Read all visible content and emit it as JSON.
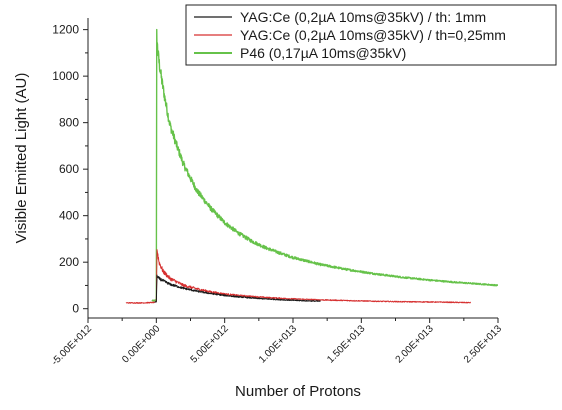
{
  "chart_data": {
    "type": "line",
    "title": "",
    "xlabel": "Number of Protons",
    "ylabel": "Visible Emitted Light (AU)",
    "xlim": [
      -5000000000000.0,
      25000000000000.0
    ],
    "ylim": [
      -40,
      1250
    ],
    "x_ticks": [
      -5000000000000.0,
      0,
      5000000000000.0,
      10000000000000.0,
      15000000000000.0,
      20000000000000.0,
      25000000000000.0
    ],
    "x_tick_labels": [
      "-5.00E+012",
      "0.00E+000",
      "5.00E+012",
      "1.00E+013",
      "1.50E+013",
      "2.00E+013",
      "2.50E+013"
    ],
    "y_ticks": [
      0,
      200,
      400,
      600,
      800,
      1000,
      1200
    ],
    "y_tick_labels": [
      "0",
      "200",
      "400",
      "600",
      "800",
      "1000",
      "1200"
    ],
    "grid": false,
    "legend_position": "top-right",
    "series": [
      {
        "name": "YAG:Ce (0,2µA  10ms@35kV) /  th: 1mm",
        "color": "#1a1a1a",
        "x": [
          -100000000000.0,
          0,
          50000000000.0,
          200000000000.0,
          500000000000.0,
          1000000000000.0,
          2000000000000.0,
          3000000000000.0,
          4000000000000.0,
          5000000000000.0,
          6000000000000.0,
          7000000000000.0,
          8000000000000.0,
          9000000000000.0,
          10000000000000.0,
          11000000000000.0,
          12000000000000.0
        ],
        "y": [
          28,
          30,
          140,
          130,
          120,
          105,
          88,
          75,
          65,
          57,
          51,
          46,
          42,
          39,
          36,
          34,
          32
        ]
      },
      {
        "name": "YAG:Ce (0,2µA  10ms@35kV) / th=0,25mm",
        "color": "#d63030",
        "x": [
          -2200000000000.0,
          -1000000000000.0,
          -100000000000.0,
          0,
          50000000000.0,
          200000000000.0,
          500000000000.0,
          1000000000000.0,
          2000000000000.0,
          3000000000000.0,
          4000000000000.0,
          5000000000000.0,
          6000000000000.0,
          8000000000000.0,
          10000000000000.0,
          12000000000000.0,
          14000000000000.0,
          16000000000000.0,
          18000000000000.0,
          20000000000000.0,
          22000000000000.0,
          23000000000000.0
        ],
        "y": [
          25,
          25,
          27,
          30,
          255,
          200,
          160,
          130,
          100,
          85,
          72,
          63,
          57,
          48,
          42,
          38,
          35,
          32,
          30,
          29,
          27,
          26
        ]
      },
      {
        "name": "P46 (0,17µA 10ms@35kV)",
        "color": "#66c24a",
        "x": [
          -300000000000.0,
          -100000000000.0,
          0,
          30000000000.0,
          100000000000.0,
          200000000000.0,
          400000000000.0,
          700000000000.0,
          1000000000000.0,
          1500000000000.0,
          2000000000000.0,
          2500000000000.0,
          3000000000000.0,
          4000000000000.0,
          5000000000000.0,
          6000000000000.0,
          7000000000000.0,
          8000000000000.0,
          9000000000000.0,
          10000000000000.0,
          12000000000000.0,
          14000000000000.0,
          16000000000000.0,
          18000000000000.0,
          20000000000000.0,
          22000000000000.0,
          24000000000000.0,
          25000000000000.0
        ],
        "y": [
          35,
          35,
          40,
          1180,
          1110,
          1060,
          980,
          880,
          790,
          700,
          620,
          560,
          505,
          430,
          370,
          325,
          290,
          262,
          240,
          220,
          190,
          168,
          150,
          135,
          123,
          113,
          105,
          100
        ]
      }
    ]
  }
}
